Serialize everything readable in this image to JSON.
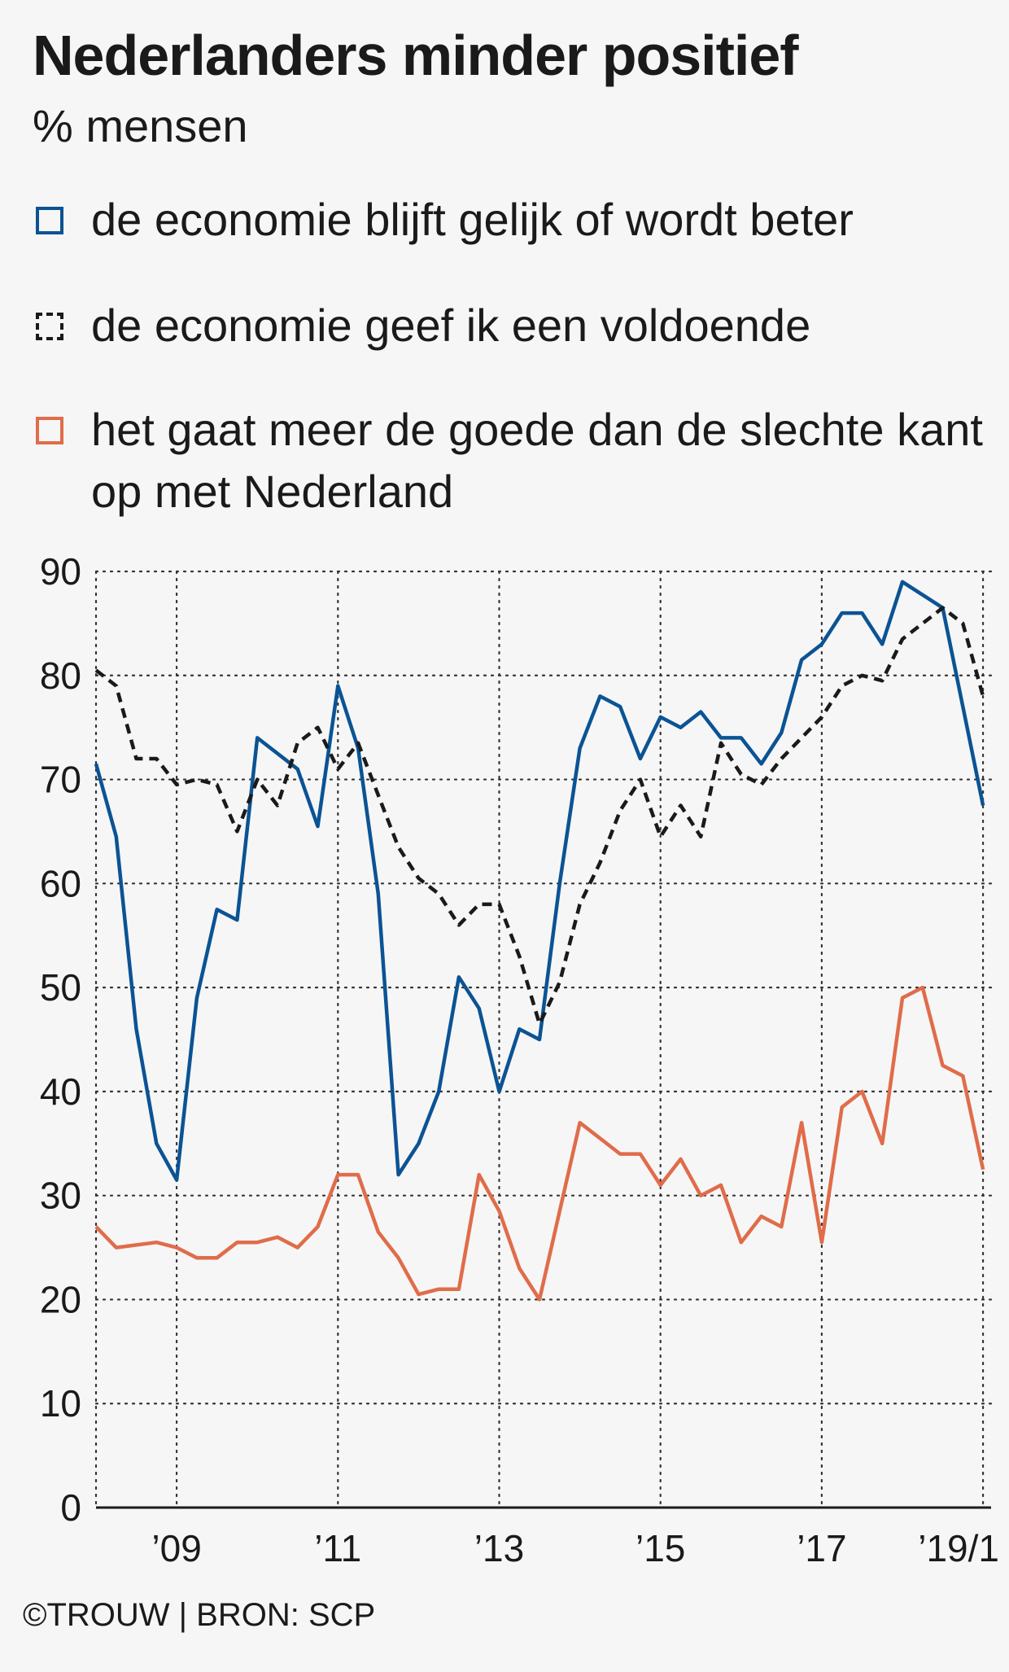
{
  "title": "Nederlanders minder positief",
  "subtitle": "% mensen",
  "source": "©TROUW | BRON: SCP",
  "colors": {
    "blue": "#0b5394",
    "black": "#1a1a1a",
    "orange": "#e06c4a"
  },
  "legend": [
    {
      "label": "de economie blijft gelijk of wordt beter",
      "color": "#0b5394",
      "style": "solid"
    },
    {
      "label": "de economie geef ik een voldoende",
      "color": "#1a1a1a",
      "style": "dashed"
    },
    {
      "label": "het gaat meer de goede dan de slechte kant op met Nederland",
      "color": "#e06c4a",
      "style": "solid"
    }
  ],
  "chart_data": {
    "type": "line",
    "ylim": [
      0,
      90
    ],
    "yticks": [
      0,
      10,
      20,
      30,
      40,
      50,
      60,
      70,
      80,
      90
    ],
    "xlim": [
      2008,
      2019.1
    ],
    "xticks": [
      {
        "x": 2009,
        "label": "’09"
      },
      {
        "x": 2011,
        "label": "’11"
      },
      {
        "x": 2013,
        "label": "’13"
      },
      {
        "x": 2015,
        "label": "’15"
      },
      {
        "x": 2017,
        "label": "’17"
      },
      {
        "x": 2019,
        "label": "’19/1"
      }
    ],
    "grid": true,
    "series": [
      {
        "name": "de economie blijft gelijk of wordt beter",
        "color": "#0b5394",
        "dash": false,
        "points": [
          [
            2008.0,
            71.5
          ],
          [
            2008.25,
            64.5
          ],
          [
            2008.5,
            46
          ],
          [
            2008.75,
            35
          ],
          [
            2009.0,
            31.5
          ],
          [
            2009.25,
            49
          ],
          [
            2009.5,
            57.5
          ],
          [
            2009.75,
            56.5
          ],
          [
            2010.0,
            74
          ],
          [
            2010.5,
            71
          ],
          [
            2010.75,
            65.5
          ],
          [
            2011.0,
            79
          ],
          [
            2011.25,
            73
          ],
          [
            2011.5,
            59
          ],
          [
            2011.75,
            32
          ],
          [
            2012.0,
            35
          ],
          [
            2012.25,
            40
          ],
          [
            2012.5,
            51
          ],
          [
            2012.75,
            48
          ],
          [
            2013.0,
            40
          ],
          [
            2013.25,
            46
          ],
          [
            2013.5,
            45
          ],
          [
            2013.75,
            60
          ],
          [
            2014.0,
            73
          ],
          [
            2014.25,
            78
          ],
          [
            2014.5,
            77
          ],
          [
            2014.75,
            72
          ],
          [
            2015.0,
            76
          ],
          [
            2015.25,
            75
          ],
          [
            2015.5,
            76.5
          ],
          [
            2015.75,
            74
          ],
          [
            2016.0,
            74
          ],
          [
            2016.25,
            71.5
          ],
          [
            2016.5,
            74.5
          ],
          [
            2016.75,
            81.5
          ],
          [
            2017.0,
            83
          ],
          [
            2017.25,
            86
          ],
          [
            2017.5,
            86
          ],
          [
            2017.75,
            83
          ],
          [
            2018.0,
            89
          ],
          [
            2018.5,
            86.5
          ],
          [
            2018.75,
            77
          ],
          [
            2019.0,
            67.5
          ]
        ]
      },
      {
        "name": "de economie geef ik een voldoende",
        "color": "#1a1a1a",
        "dash": true,
        "points": [
          [
            2008.0,
            80.5
          ],
          [
            2008.25,
            79
          ],
          [
            2008.5,
            72
          ],
          [
            2008.75,
            72
          ],
          [
            2009.0,
            69.5
          ],
          [
            2009.25,
            70
          ],
          [
            2009.5,
            69.5
          ],
          [
            2009.75,
            65
          ],
          [
            2010.0,
            70
          ],
          [
            2010.25,
            67.5
          ],
          [
            2010.5,
            73.5
          ],
          [
            2010.75,
            75
          ],
          [
            2011.0,
            71
          ],
          [
            2011.25,
            73.5
          ],
          [
            2011.5,
            68.5
          ],
          [
            2011.75,
            63.5
          ],
          [
            2012.0,
            60.5
          ],
          [
            2012.25,
            59
          ],
          [
            2012.5,
            56
          ],
          [
            2012.75,
            58
          ],
          [
            2013.0,
            58
          ],
          [
            2013.25,
            53
          ],
          [
            2013.5,
            46.5
          ],
          [
            2013.75,
            50.5
          ],
          [
            2014.0,
            58
          ],
          [
            2014.25,
            62
          ],
          [
            2014.5,
            67
          ],
          [
            2014.75,
            70
          ],
          [
            2015.0,
            64.5
          ],
          [
            2015.25,
            67.5
          ],
          [
            2015.5,
            64.5
          ],
          [
            2015.75,
            73.5
          ],
          [
            2016.0,
            70.5
          ],
          [
            2016.25,
            69.5
          ],
          [
            2016.5,
            72
          ],
          [
            2016.75,
            74
          ],
          [
            2017.0,
            76
          ],
          [
            2017.25,
            79
          ],
          [
            2017.5,
            80
          ],
          [
            2017.75,
            79.5
          ],
          [
            2018.0,
            83.5
          ],
          [
            2018.25,
            85
          ],
          [
            2018.5,
            86.5
          ],
          [
            2018.75,
            85
          ],
          [
            2019.0,
            78
          ]
        ]
      },
      {
        "name": "het gaat meer de goede dan de slechte kant op met Nederland",
        "color": "#e06c4a",
        "dash": false,
        "points": [
          [
            2008.0,
            27
          ],
          [
            2008.25,
            25
          ],
          [
            2008.75,
            25.5
          ],
          [
            2009.0,
            25
          ],
          [
            2009.25,
            24
          ],
          [
            2009.5,
            24
          ],
          [
            2009.75,
            25.5
          ],
          [
            2010.0,
            25.5
          ],
          [
            2010.25,
            26
          ],
          [
            2010.5,
            25
          ],
          [
            2010.75,
            27
          ],
          [
            2011.0,
            32
          ],
          [
            2011.25,
            32
          ],
          [
            2011.5,
            26.5
          ],
          [
            2011.75,
            24
          ],
          [
            2012.0,
            20.5
          ],
          [
            2012.25,
            21
          ],
          [
            2012.5,
            21
          ],
          [
            2012.75,
            32
          ],
          [
            2013.0,
            28.5
          ],
          [
            2013.25,
            23
          ],
          [
            2013.5,
            20
          ],
          [
            2013.75,
            28.5
          ],
          [
            2014.0,
            37
          ],
          [
            2014.25,
            35.5
          ],
          [
            2014.5,
            34
          ],
          [
            2014.75,
            34
          ],
          [
            2015.0,
            31
          ],
          [
            2015.25,
            33.5
          ],
          [
            2015.5,
            30
          ],
          [
            2015.75,
            31
          ],
          [
            2016.0,
            25.5
          ],
          [
            2016.25,
            28
          ],
          [
            2016.5,
            27
          ],
          [
            2016.75,
            37
          ],
          [
            2017.0,
            25.5
          ],
          [
            2017.25,
            38.5
          ],
          [
            2017.5,
            40
          ],
          [
            2017.75,
            35
          ],
          [
            2018.0,
            49
          ],
          [
            2018.25,
            50
          ],
          [
            2018.5,
            42.5
          ],
          [
            2018.75,
            41.5
          ],
          [
            2019.0,
            32.5
          ]
        ]
      }
    ]
  }
}
